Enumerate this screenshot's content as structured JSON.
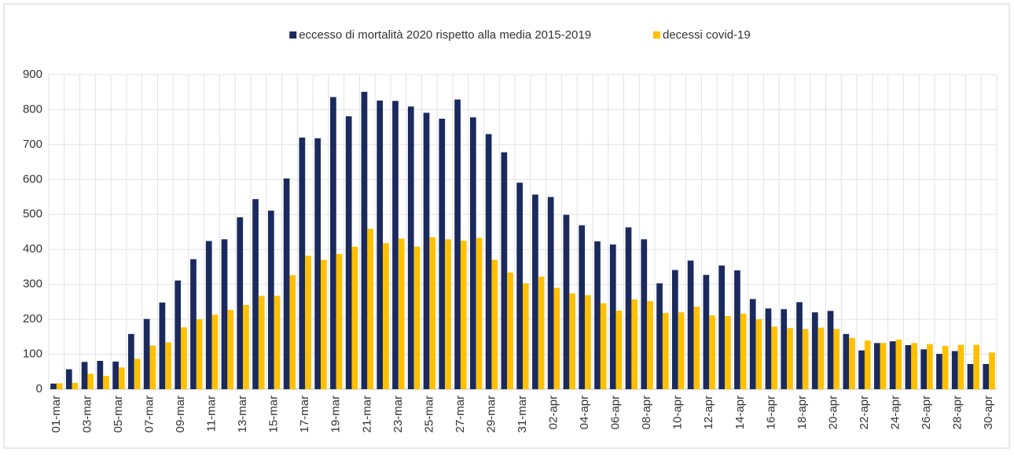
{
  "chart_data": {
    "type": "bar",
    "categories": [
      "01-mar",
      null,
      "03-mar",
      null,
      "05-mar",
      null,
      "07-mar",
      null,
      "09-mar",
      null,
      "11-mar",
      null,
      "13-mar",
      null,
      "15-mar",
      null,
      "17-mar",
      null,
      "19-mar",
      null,
      "21-mar",
      null,
      "23-mar",
      null,
      "25-mar",
      null,
      "27-mar",
      null,
      "29-mar",
      null,
      "31-mar",
      null,
      "02-apr",
      null,
      "04-apr",
      null,
      "06-apr",
      null,
      "08-apr",
      null,
      "10-apr",
      null,
      "12-apr",
      null,
      "14-apr",
      null,
      "16-apr",
      null,
      "18-apr",
      null,
      "20-apr",
      null,
      "22-apr",
      null,
      "24-apr",
      null,
      "26-apr",
      null,
      "28-apr",
      null,
      "30-apr"
    ],
    "series": [
      {
        "name": "eccesso di mortalità  2020 rispetto alla media 2015-2019",
        "color": "#1b2a5e",
        "values": [
          16,
          57,
          78,
          81,
          79,
          158,
          201,
          248,
          311,
          372,
          424,
          429,
          492,
          544,
          511,
          603,
          720,
          718,
          836,
          781,
          851,
          826,
          825,
          809,
          791,
          774,
          829,
          778,
          730,
          678,
          591,
          557,
          550,
          499,
          469,
          423,
          414,
          463,
          429,
          303,
          341,
          368,
          327,
          354,
          340,
          258,
          231,
          229,
          249,
          220,
          224,
          158,
          111,
          132,
          137,
          126,
          114,
          101,
          109,
          72,
          72
        ]
      },
      {
        "name": "decessi covid-19",
        "color": "#ffc000",
        "values": [
          17,
          18,
          44,
          38,
          62,
          87,
          125,
          134,
          177,
          200,
          213,
          227,
          241,
          267,
          267,
          326,
          382,
          370,
          387,
          408,
          459,
          418,
          431,
          408,
          435,
          429,
          425,
          433,
          370,
          334,
          303,
          322,
          290,
          274,
          269,
          246,
          225,
          257,
          252,
          218,
          220,
          236,
          211,
          209,
          216,
          200,
          179,
          175,
          172,
          176,
          172,
          147,
          139,
          132,
          142,
          132,
          129,
          124,
          127,
          127,
          105
        ]
      }
    ],
    "ylim": [
      0,
      900
    ],
    "yticks": [
      0,
      100,
      200,
      300,
      400,
      500,
      600,
      700,
      800,
      900
    ],
    "grid": true,
    "legend": "top"
  }
}
